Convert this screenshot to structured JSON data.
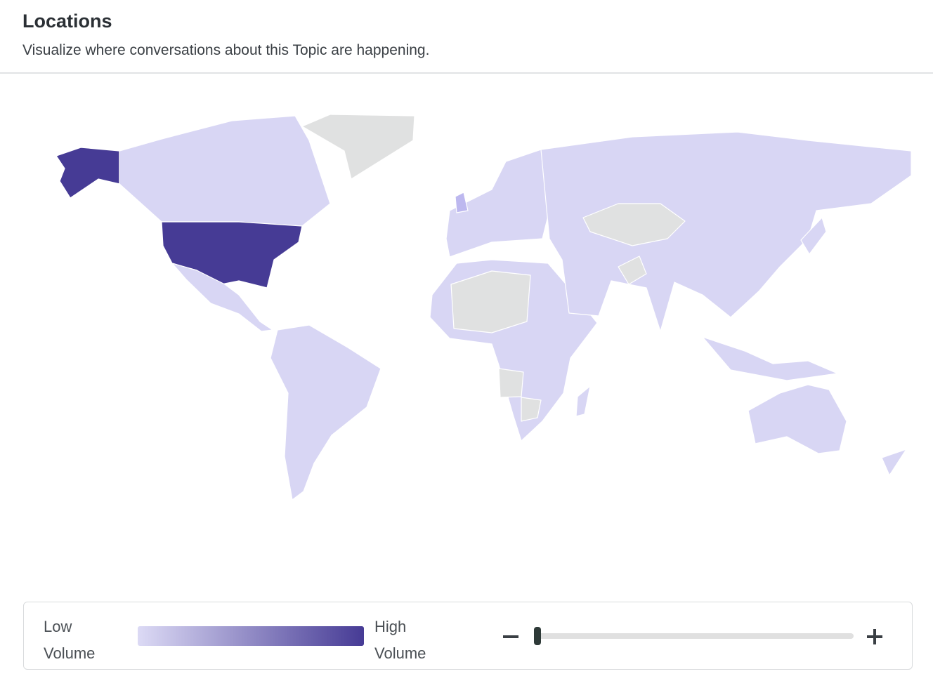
{
  "header": {
    "title": "Locations",
    "subtitle": "Visualize where conversations about this Topic are happening."
  },
  "legend": {
    "low_label": "Low Volume",
    "high_label": "High Volume"
  }
}
